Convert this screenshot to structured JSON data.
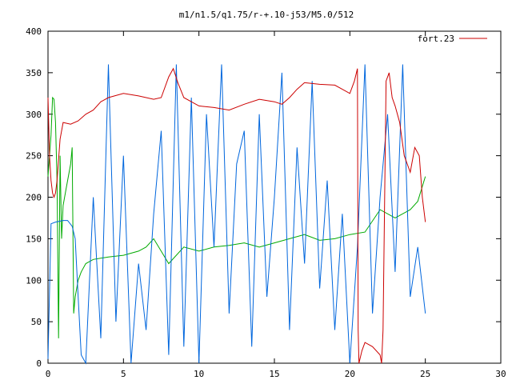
{
  "chart_data": {
    "type": "line",
    "title": "m1/n1.5/q1.75/r-+.10-j53/M5.0/512",
    "xlabel": "",
    "ylabel": "",
    "xlim": [
      0,
      30
    ],
    "ylim": [
      0,
      400
    ],
    "xticks": [
      "0",
      "5",
      "10",
      "15",
      "20",
      "25",
      "30"
    ],
    "yticks": [
      "0",
      "50",
      "100",
      "150",
      "200",
      "250",
      "300",
      "350",
      "400"
    ],
    "grid": false,
    "legend_position": "top-right",
    "series": [
      {
        "name": "fort.23",
        "color": "#cc0000",
        "x": [
          0,
          0.1,
          0.2,
          0.3,
          0.4,
          0.5,
          0.6,
          0.8,
          1.0,
          1.5,
          2.0,
          2.5,
          3.0,
          3.5,
          4.0,
          5.0,
          6.0,
          7.0,
          7.5,
          8.0,
          8.3,
          8.6,
          9.0,
          10.0,
          11.0,
          12.0,
          13.0,
          14.0,
          15.0,
          15.5,
          16.0,
          16.5,
          17.0,
          18.0,
          19.0,
          19.5,
          20.0,
          20.3,
          20.5,
          20.55,
          20.6,
          20.8,
          21.0,
          21.5,
          22.0,
          22.1,
          22.2,
          22.4,
          22.6,
          22.8,
          23.0,
          23.3,
          23.6,
          24.0,
          24.3,
          24.6,
          24.8,
          25.0
        ],
        "y": [
          320,
          250,
          220,
          205,
          200,
          205,
          220,
          270,
          290,
          288,
          292,
          300,
          305,
          315,
          320,
          325,
          322,
          318,
          320,
          345,
          355,
          338,
          320,
          310,
          308,
          305,
          312,
          318,
          315,
          312,
          320,
          330,
          338,
          336,
          335,
          330,
          325,
          340,
          355,
          40,
          0,
          15,
          25,
          20,
          10,
          0,
          40,
          340,
          350,
          320,
          310,
          290,
          250,
          230,
          260,
          250,
          200,
          170
        ]
      },
      {
        "name": "",
        "color": "#0066dd",
        "x": [
          0,
          0.2,
          0.5,
          1.0,
          1.3,
          1.6,
          1.8,
          2.0,
          2.2,
          2.5,
          3.0,
          3.5,
          4.0,
          4.5,
          5.0,
          5.5,
          6.0,
          6.5,
          7.0,
          7.5,
          8.0,
          8.5,
          9.0,
          9.5,
          10.0,
          10.5,
          11.0,
          11.5,
          12.0,
          12.5,
          13.0,
          13.5,
          14.0,
          14.5,
          15.0,
          15.5,
          16.0,
          16.5,
          17.0,
          17.5,
          18.0,
          18.5,
          19.0,
          19.5,
          20.0,
          20.5,
          21.0,
          21.5,
          22.0,
          22.5,
          23.0,
          23.5,
          24.0,
          24.5,
          25.0
        ],
        "y": [
          5,
          168,
          170,
          172,
          172,
          165,
          150,
          80,
          10,
          0,
          200,
          30,
          360,
          50,
          250,
          0,
          120,
          40,
          180,
          280,
          10,
          360,
          20,
          320,
          0,
          300,
          140,
          360,
          60,
          240,
          280,
          20,
          300,
          80,
          200,
          350,
          40,
          260,
          120,
          340,
          90,
          220,
          40,
          180,
          0,
          140,
          360,
          60,
          200,
          300,
          110,
          360,
          80,
          140,
          60
        ]
      },
      {
        "name": "",
        "color": "#00aa00",
        "x": [
          0,
          0.2,
          0.3,
          0.4,
          0.5,
          0.6,
          0.7,
          0.8,
          0.9,
          1.0,
          1.2,
          1.5,
          1.6,
          1.7,
          1.8,
          2.0,
          2.2,
          2.5,
          3.0,
          4.0,
          5.0,
          6.0,
          6.5,
          7.0,
          8.0,
          9.0,
          10.0,
          11.0,
          12.0,
          13.0,
          14.0,
          15.0,
          16.0,
          17.0,
          18.0,
          19.0,
          20.0,
          21.0,
          22.0,
          23.0,
          24.0,
          24.5,
          25.0
        ],
        "y": [
          225,
          275,
          320,
          318,
          290,
          220,
          30,
          250,
          150,
          190,
          210,
          240,
          260,
          60,
          80,
          100,
          110,
          120,
          125,
          128,
          130,
          135,
          140,
          150,
          120,
          140,
          135,
          140,
          142,
          145,
          140,
          145,
          150,
          155,
          148,
          150,
          155,
          158,
          185,
          175,
          185,
          195,
          225
        ]
      }
    ]
  }
}
